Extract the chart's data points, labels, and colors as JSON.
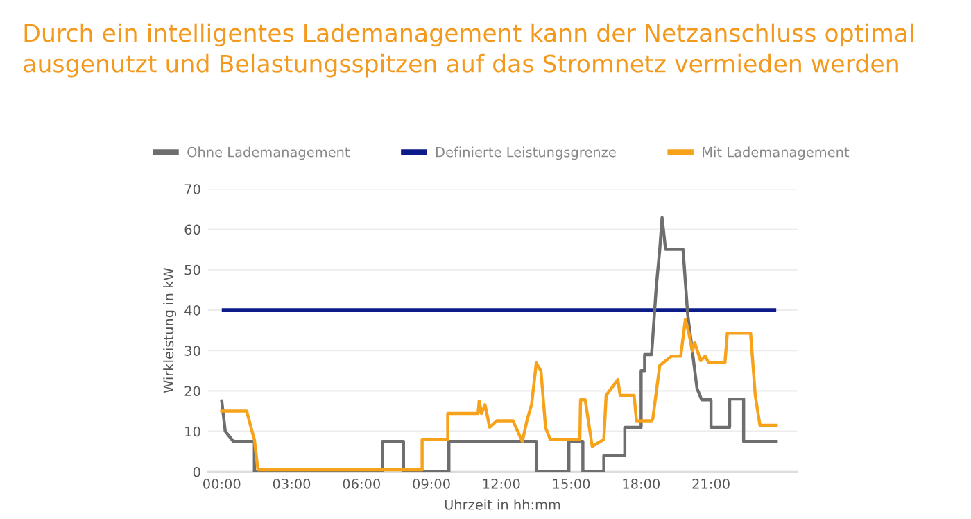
{
  "chart_data": {
    "type": "line",
    "title": "Durch ein intelligentes Lademanagement kann der Netzanschluss optimal\nausgenutzt und Belastungsspitzen auf das Stromnetz vermieden werden",
    "xlabel": "Uhrzeit in hh:mm",
    "ylabel": "Wirkleistung in kW",
    "series": [
      {
        "name": "Ohne Lademanagement",
        "color": "#6e6e6e",
        "x": [
          0,
          0.15,
          0.5,
          1.4,
          1.4,
          6.9,
          6.9,
          7.8,
          7.8,
          9.75,
          9.75,
          13.5,
          13.5,
          14.9,
          14.9,
          15.5,
          15.5,
          16.4,
          16.4,
          17.3,
          17.3,
          18.0,
          18.0,
          18.15,
          18.15,
          18.45,
          18.65,
          18.8,
          18.9,
          19.05,
          19.8,
          20.0,
          20.4,
          20.6,
          21.0,
          21.0,
          21.8,
          21.8,
          22.4,
          22.4,
          23.8
        ],
        "values": [
          17.5,
          10,
          7.5,
          7.5,
          0,
          0,
          7.5,
          7.5,
          0,
          0,
          7.5,
          7.5,
          0,
          0,
          7.5,
          7.5,
          0,
          0,
          4,
          4,
          11,
          11,
          25,
          25,
          29,
          29,
          45.7,
          55,
          62.9,
          55,
          55,
          38.9,
          20.6,
          17.8,
          17.8,
          11,
          11,
          18,
          18,
          7.5,
          7.5
        ]
      },
      {
        "name": "Mit Lademanagement",
        "color": "#f7a21b",
        "x": [
          0,
          1.07,
          1.3,
          1.4,
          1.55,
          8.6,
          8.6,
          9.7,
          9.7,
          11.0,
          11.05,
          11.15,
          11.3,
          11.5,
          11.8,
          12.5,
          12.9,
          13.1,
          13.3,
          13.5,
          13.7,
          13.9,
          14.1,
          15.37,
          15.4,
          15.6,
          15.9,
          16.4,
          16.5,
          17.0,
          17.1,
          17.7,
          17.8,
          18.45,
          18.5,
          18.8,
          19.3,
          19.7,
          19.9,
          20.05,
          20.2,
          20.3,
          20.55,
          20.75,
          20.9,
          21.6,
          21.7,
          22.7,
          22.9,
          23.1,
          23.8
        ],
        "values": [
          15,
          15,
          10,
          8,
          0.5,
          0.5,
          8,
          8,
          14.4,
          14.4,
          17.5,
          14.4,
          16.6,
          11,
          12.6,
          12.6,
          7.5,
          12.7,
          16.7,
          26.9,
          25,
          10.9,
          8,
          8,
          17.8,
          17.8,
          6.3,
          8,
          18.9,
          22.8,
          18.9,
          18.9,
          12.6,
          12.6,
          13,
          26.3,
          28.6,
          28.6,
          37.7,
          34.3,
          29.8,
          32,
          27.5,
          28.6,
          27,
          27,
          34.3,
          34.3,
          18.9,
          11.5,
          11.5
        ]
      }
    ],
    "ref_lines": [
      {
        "axis": "y",
        "value": 40,
        "label": "Definierte Leistungsgrenze",
        "color": "#0d1a8a"
      }
    ],
    "xlim": [
      -0.6,
      24.7
    ],
    "xticks": [
      {
        "value": 0,
        "label": "00:00"
      },
      {
        "value": 3,
        "label": "03:00"
      },
      {
        "value": 6,
        "label": "06:00"
      },
      {
        "value": 9,
        "label": "09:00"
      },
      {
        "value": 12,
        "label": "12:00"
      },
      {
        "value": 15,
        "label": "15:00"
      },
      {
        "value": 18,
        "label": "18:00"
      },
      {
        "value": 21,
        "label": "21:00"
      }
    ],
    "ylim": [
      0,
      70
    ],
    "yticks": [
      0,
      10,
      20,
      30,
      40,
      50,
      60,
      70
    ],
    "grid": "y",
    "legend": "top"
  }
}
